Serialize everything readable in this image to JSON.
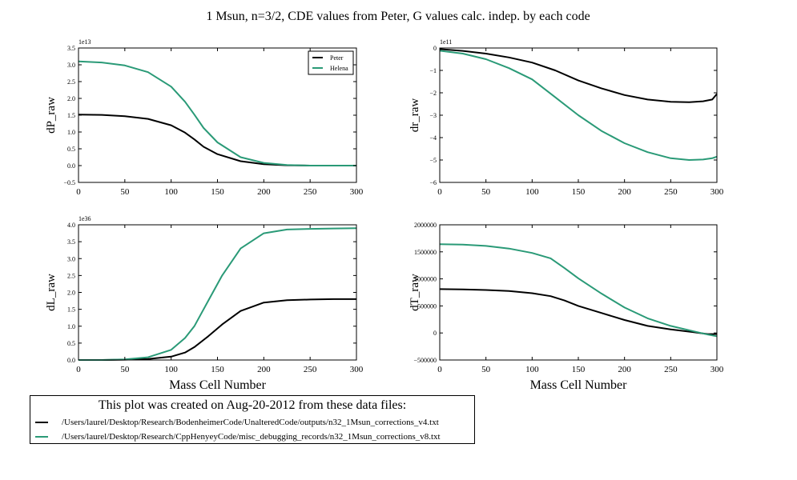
{
  "figure": {
    "suptitle": "1 Msun, n=3/2, CDE values from Peter, G values calc. indep. by each code"
  },
  "colors": {
    "peter": "#000000",
    "helena": "#2a9a77"
  },
  "chart_data": [
    {
      "id": "dP",
      "type": "line",
      "ylabel": "dP_raw",
      "xlabel": "",
      "offset_text": "1e13",
      "xlim": [
        0,
        300
      ],
      "ylim": [
        -0.5,
        3.5
      ],
      "xticks": [
        0,
        50,
        100,
        150,
        200,
        250,
        300
      ],
      "xtick_labels": [
        "0",
        "50",
        "100",
        "150",
        "200",
        "250",
        "300"
      ],
      "yticks": [
        -0.5,
        0.0,
        0.5,
        1.0,
        1.5,
        2.0,
        2.5,
        3.0,
        3.5
      ],
      "ytick_labels": [
        "−0.5",
        "0.0",
        "0.5",
        "1.0",
        "1.5",
        "2.0",
        "2.5",
        "3.0",
        "3.5"
      ],
      "legend": {
        "loc": "upper right",
        "entries": [
          "Peter",
          "Helena"
        ]
      },
      "series": [
        {
          "name": "Peter",
          "color": "#000000",
          "x": [
            0,
            25,
            50,
            75,
            100,
            115,
            125,
            135,
            150,
            175,
            200,
            225,
            250,
            275,
            300
          ],
          "y": [
            1.52,
            1.51,
            1.47,
            1.39,
            1.2,
            0.98,
            0.78,
            0.56,
            0.34,
            0.13,
            0.04,
            0.01,
            0.0,
            0.0,
            0.0
          ]
        },
        {
          "name": "Helena",
          "color": "#2a9a77",
          "x": [
            0,
            25,
            50,
            75,
            100,
            115,
            125,
            135,
            150,
            175,
            200,
            225,
            250,
            275,
            300
          ],
          "y": [
            3.1,
            3.07,
            2.98,
            2.78,
            2.35,
            1.9,
            1.52,
            1.12,
            0.69,
            0.25,
            0.08,
            0.02,
            0.0,
            0.0,
            0.0
          ]
        }
      ]
    },
    {
      "id": "dr",
      "type": "line",
      "ylabel": "dr_raw",
      "xlabel": "",
      "offset_text": "1e11",
      "xlim": [
        0,
        300
      ],
      "ylim": [
        -6,
        0
      ],
      "xticks": [
        0,
        50,
        100,
        150,
        200,
        250,
        300
      ],
      "xtick_labels": [
        "0",
        "50",
        "100",
        "150",
        "200",
        "250",
        "300"
      ],
      "yticks": [
        -6,
        -5,
        -4,
        -3,
        -2,
        -1,
        0
      ],
      "ytick_labels": [
        "−6",
        "−5",
        "−4",
        "−3",
        "−2",
        "−1",
        "0"
      ],
      "series": [
        {
          "name": "Peter",
          "color": "#000000",
          "x": [
            0,
            25,
            50,
            75,
            100,
            125,
            150,
            175,
            200,
            225,
            250,
            270,
            285,
            295,
            297,
            300
          ],
          "y": [
            -0.05,
            -0.13,
            -0.25,
            -0.42,
            -0.65,
            -1.0,
            -1.45,
            -1.8,
            -2.1,
            -2.3,
            -2.4,
            -2.42,
            -2.38,
            -2.3,
            -2.2,
            -2.05
          ]
        },
        {
          "name": "Helena",
          "color": "#2a9a77",
          "x": [
            0,
            25,
            50,
            75,
            100,
            125,
            150,
            175,
            200,
            225,
            250,
            270,
            285,
            295,
            300
          ],
          "y": [
            -0.12,
            -0.25,
            -0.5,
            -0.9,
            -1.4,
            -2.2,
            -3.0,
            -3.7,
            -4.25,
            -4.65,
            -4.92,
            -5.0,
            -4.98,
            -4.92,
            -4.85
          ]
        }
      ]
    },
    {
      "id": "dL",
      "type": "line",
      "ylabel": "dL_raw",
      "xlabel": "Mass Cell Number",
      "offset_text": "1e36",
      "xlim": [
        0,
        300
      ],
      "ylim": [
        0,
        4
      ],
      "xticks": [
        0,
        50,
        100,
        150,
        200,
        250,
        300
      ],
      "xtick_labels": [
        "0",
        "50",
        "100",
        "150",
        "200",
        "250",
        "300"
      ],
      "yticks": [
        0.0,
        0.5,
        1.0,
        1.5,
        2.0,
        2.5,
        3.0,
        3.5,
        4.0
      ],
      "ytick_labels": [
        "0.0",
        "0.5",
        "1.0",
        "1.5",
        "2.0",
        "2.5",
        "3.0",
        "3.5",
        "4.0"
      ],
      "series": [
        {
          "name": "Peter",
          "color": "#000000",
          "x": [
            0,
            25,
            50,
            75,
            100,
            115,
            125,
            140,
            155,
            175,
            200,
            225,
            250,
            275,
            300
          ],
          "y": [
            0.0,
            0.0,
            0.01,
            0.03,
            0.1,
            0.22,
            0.38,
            0.7,
            1.05,
            1.45,
            1.7,
            1.77,
            1.79,
            1.8,
            1.8
          ]
        },
        {
          "name": "Helena",
          "color": "#2a9a77",
          "x": [
            0,
            25,
            50,
            75,
            100,
            115,
            125,
            140,
            155,
            175,
            200,
            225,
            250,
            275,
            300
          ],
          "y": [
            0.0,
            0.0,
            0.02,
            0.08,
            0.3,
            0.65,
            1.0,
            1.75,
            2.5,
            3.3,
            3.75,
            3.86,
            3.88,
            3.89,
            3.9
          ]
        }
      ]
    },
    {
      "id": "dT",
      "type": "line",
      "ylabel": "dT_raw",
      "xlabel": "Mass Cell Number",
      "offset_text": "",
      "xlim": [
        0,
        300
      ],
      "ylim": [
        -500000,
        2000000
      ],
      "xticks": [
        0,
        50,
        100,
        150,
        200,
        250,
        300
      ],
      "xtick_labels": [
        "0",
        "50",
        "100",
        "150",
        "200",
        "250",
        "300"
      ],
      "yticks": [
        -500000,
        0,
        500000,
        1000000,
        1500000,
        2000000
      ],
      "ytick_labels": [
        "−500000",
        "0",
        "500000",
        "1000000",
        "1500000",
        "2000000"
      ],
      "series": [
        {
          "name": "Peter",
          "color": "#000000",
          "x": [
            0,
            25,
            50,
            75,
            100,
            120,
            135,
            150,
            175,
            200,
            225,
            250,
            275,
            290,
            300
          ],
          "y": [
            810000,
            806000,
            795000,
            775000,
            735000,
            680000,
            600000,
            500000,
            370000,
            240000,
            130000,
            65000,
            15000,
            -20000,
            -20000
          ]
        },
        {
          "name": "Helena",
          "color": "#2a9a77",
          "x": [
            0,
            25,
            50,
            75,
            100,
            120,
            135,
            150,
            175,
            200,
            225,
            250,
            275,
            290,
            300
          ],
          "y": [
            1640000,
            1635000,
            1610000,
            1560000,
            1480000,
            1380000,
            1200000,
            1010000,
            730000,
            470000,
            270000,
            130000,
            30000,
            -30000,
            -60000
          ]
        }
      ]
    }
  ],
  "footer": {
    "title": "This plot was created on Aug-20-2012 from these data files:",
    "files": [
      {
        "color": "#000000",
        "path": "/Users/laurel/Desktop/Research/BodenheimerCode/UnalteredCode/outputs/n32_1Msun_corrections_v4.txt"
      },
      {
        "color": "#2a9a77",
        "path": "/Users/laurel/Desktop/Research/CppHenyeyCode/misc_debugging_records/n32_1Msun_corrections_v8.txt"
      }
    ]
  }
}
